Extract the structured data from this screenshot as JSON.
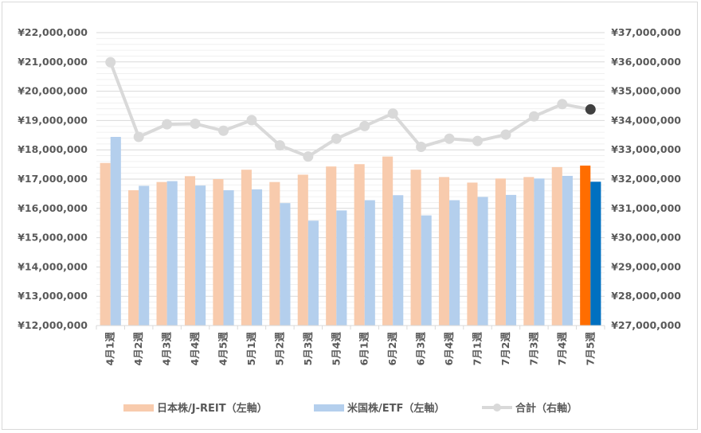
{
  "chart_data": {
    "type": "bar",
    "categories": [
      "4月1週",
      "4月2週",
      "4月3週",
      "4月4週",
      "4月5週",
      "5月1週",
      "5月2週",
      "5月3週",
      "5月4週",
      "6月1週",
      "6月2週",
      "6月3週",
      "6月4週",
      "7月1週",
      "7月2週",
      "7月3週",
      "7月4週",
      "7月5週"
    ],
    "series": [
      {
        "name": "日本株/J-REIT（左軸）",
        "type": "bar",
        "axis": "left",
        "color": "#f8cbad",
        "highlight_color": "#ff6d00",
        "values": [
          17550000,
          16620000,
          16900000,
          17100000,
          17000000,
          17320000,
          16900000,
          17150000,
          17430000,
          17510000,
          17770000,
          17320000,
          17070000,
          16880000,
          17020000,
          17070000,
          17410000,
          17460000
        ]
      },
      {
        "name": "米国株/ETF（左軸）",
        "type": "bar",
        "axis": "left",
        "color": "#b4cfed",
        "highlight_color": "#0070c0",
        "values": [
          18440000,
          16770000,
          16930000,
          16780000,
          16620000,
          16650000,
          16180000,
          15580000,
          15930000,
          16280000,
          16450000,
          15760000,
          16280000,
          16390000,
          16460000,
          17020000,
          17110000,
          16910000
        ]
      },
      {
        "name": "合計（右軸）",
        "type": "line",
        "axis": "right",
        "color": "#d9d9d9",
        "highlight_color": "#404040",
        "values": [
          35990000,
          33440000,
          33870000,
          33890000,
          33650000,
          34010000,
          33150000,
          32770000,
          33380000,
          33810000,
          34240000,
          33100000,
          33380000,
          33300000,
          33520000,
          34140000,
          34560000,
          34380000
        ]
      }
    ],
    "y_left": {
      "min": 12000000,
      "max": 22000000,
      "step": 1000000,
      "tick_labels": [
        "¥12,000,000",
        "¥13,000,000",
        "¥14,000,000",
        "¥15,000,000",
        "¥16,000,000",
        "¥17,000,000",
        "¥18,000,000",
        "¥19,000,000",
        "¥20,000,000",
        "¥21,000,000",
        "¥22,000,000"
      ]
    },
    "y_right": {
      "min": 27000000,
      "max": 37000000,
      "step": 1000000,
      "tick_labels": [
        "¥27,000,000",
        "¥28,000,000",
        "¥29,000,000",
        "¥30,000,000",
        "¥31,000,000",
        "¥32,000,000",
        "¥33,000,000",
        "¥34,000,000",
        "¥35,000,000",
        "¥36,000,000",
        "¥37,000,000"
      ]
    },
    "grid": true,
    "legend_position": "bottom",
    "title": "",
    "xlabel": "",
    "ylabel": ""
  }
}
